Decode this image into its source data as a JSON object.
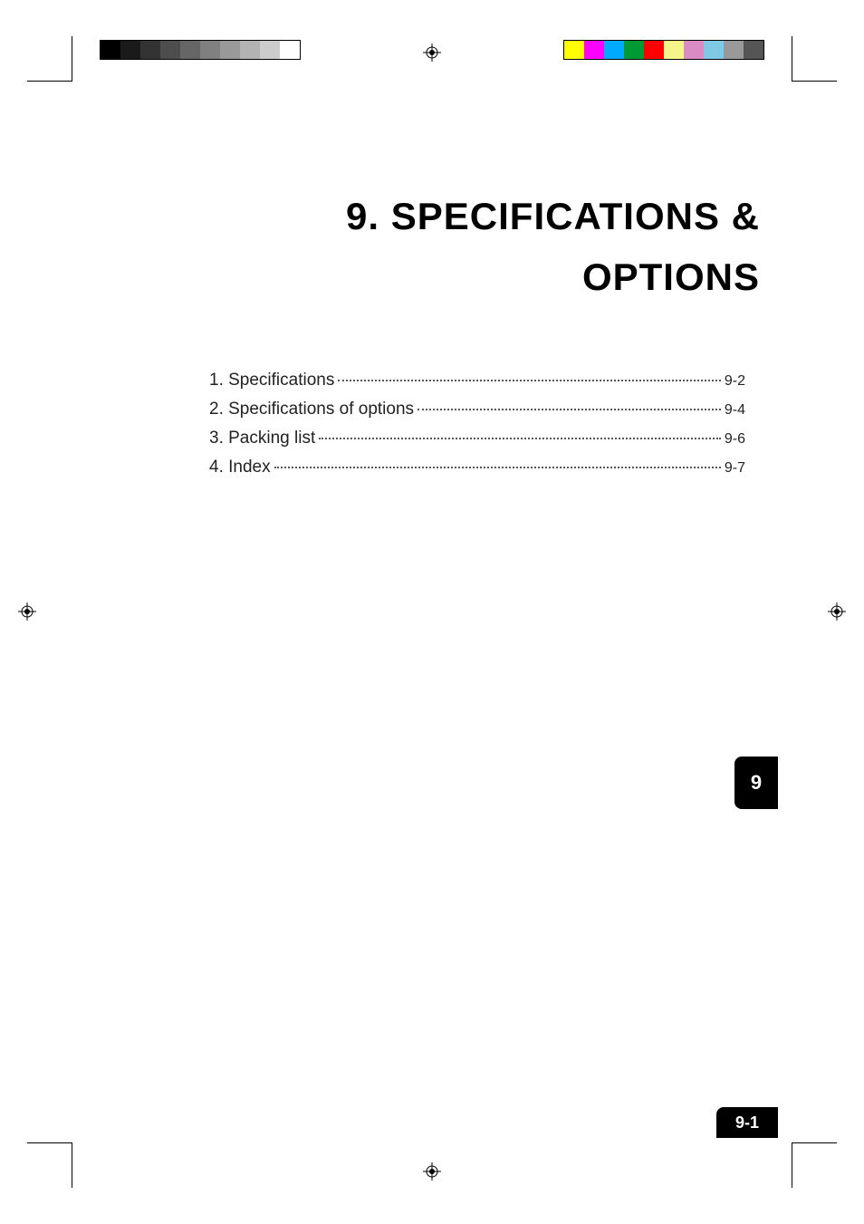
{
  "title_line1": "9. SPECIFICATIONS &",
  "title_line2": "OPTIONS",
  "toc": [
    {
      "label": "1. Specifications",
      "page": "9-2"
    },
    {
      "label": "2. Specifications of options",
      "page": "9-4"
    },
    {
      "label": "3. Packing list",
      "page": "9-6"
    },
    {
      "label": "4. Index",
      "page": "9-7"
    }
  ],
  "chapter_tab": "9",
  "page_number": "9-1",
  "gray_strip_colors": [
    "#000000",
    "#1a1a1a",
    "#333333",
    "#4d4d4d",
    "#666666",
    "#808080",
    "#999999",
    "#b3b3b3",
    "#cccccc",
    "#ffffff"
  ],
  "color_strip_colors": [
    "#ffff00",
    "#ff00ff",
    "#00aaff",
    "#009933",
    "#ff0000",
    "#f5f58a",
    "#d98cc4",
    "#7fc9e6",
    "#999999",
    "#555555"
  ]
}
